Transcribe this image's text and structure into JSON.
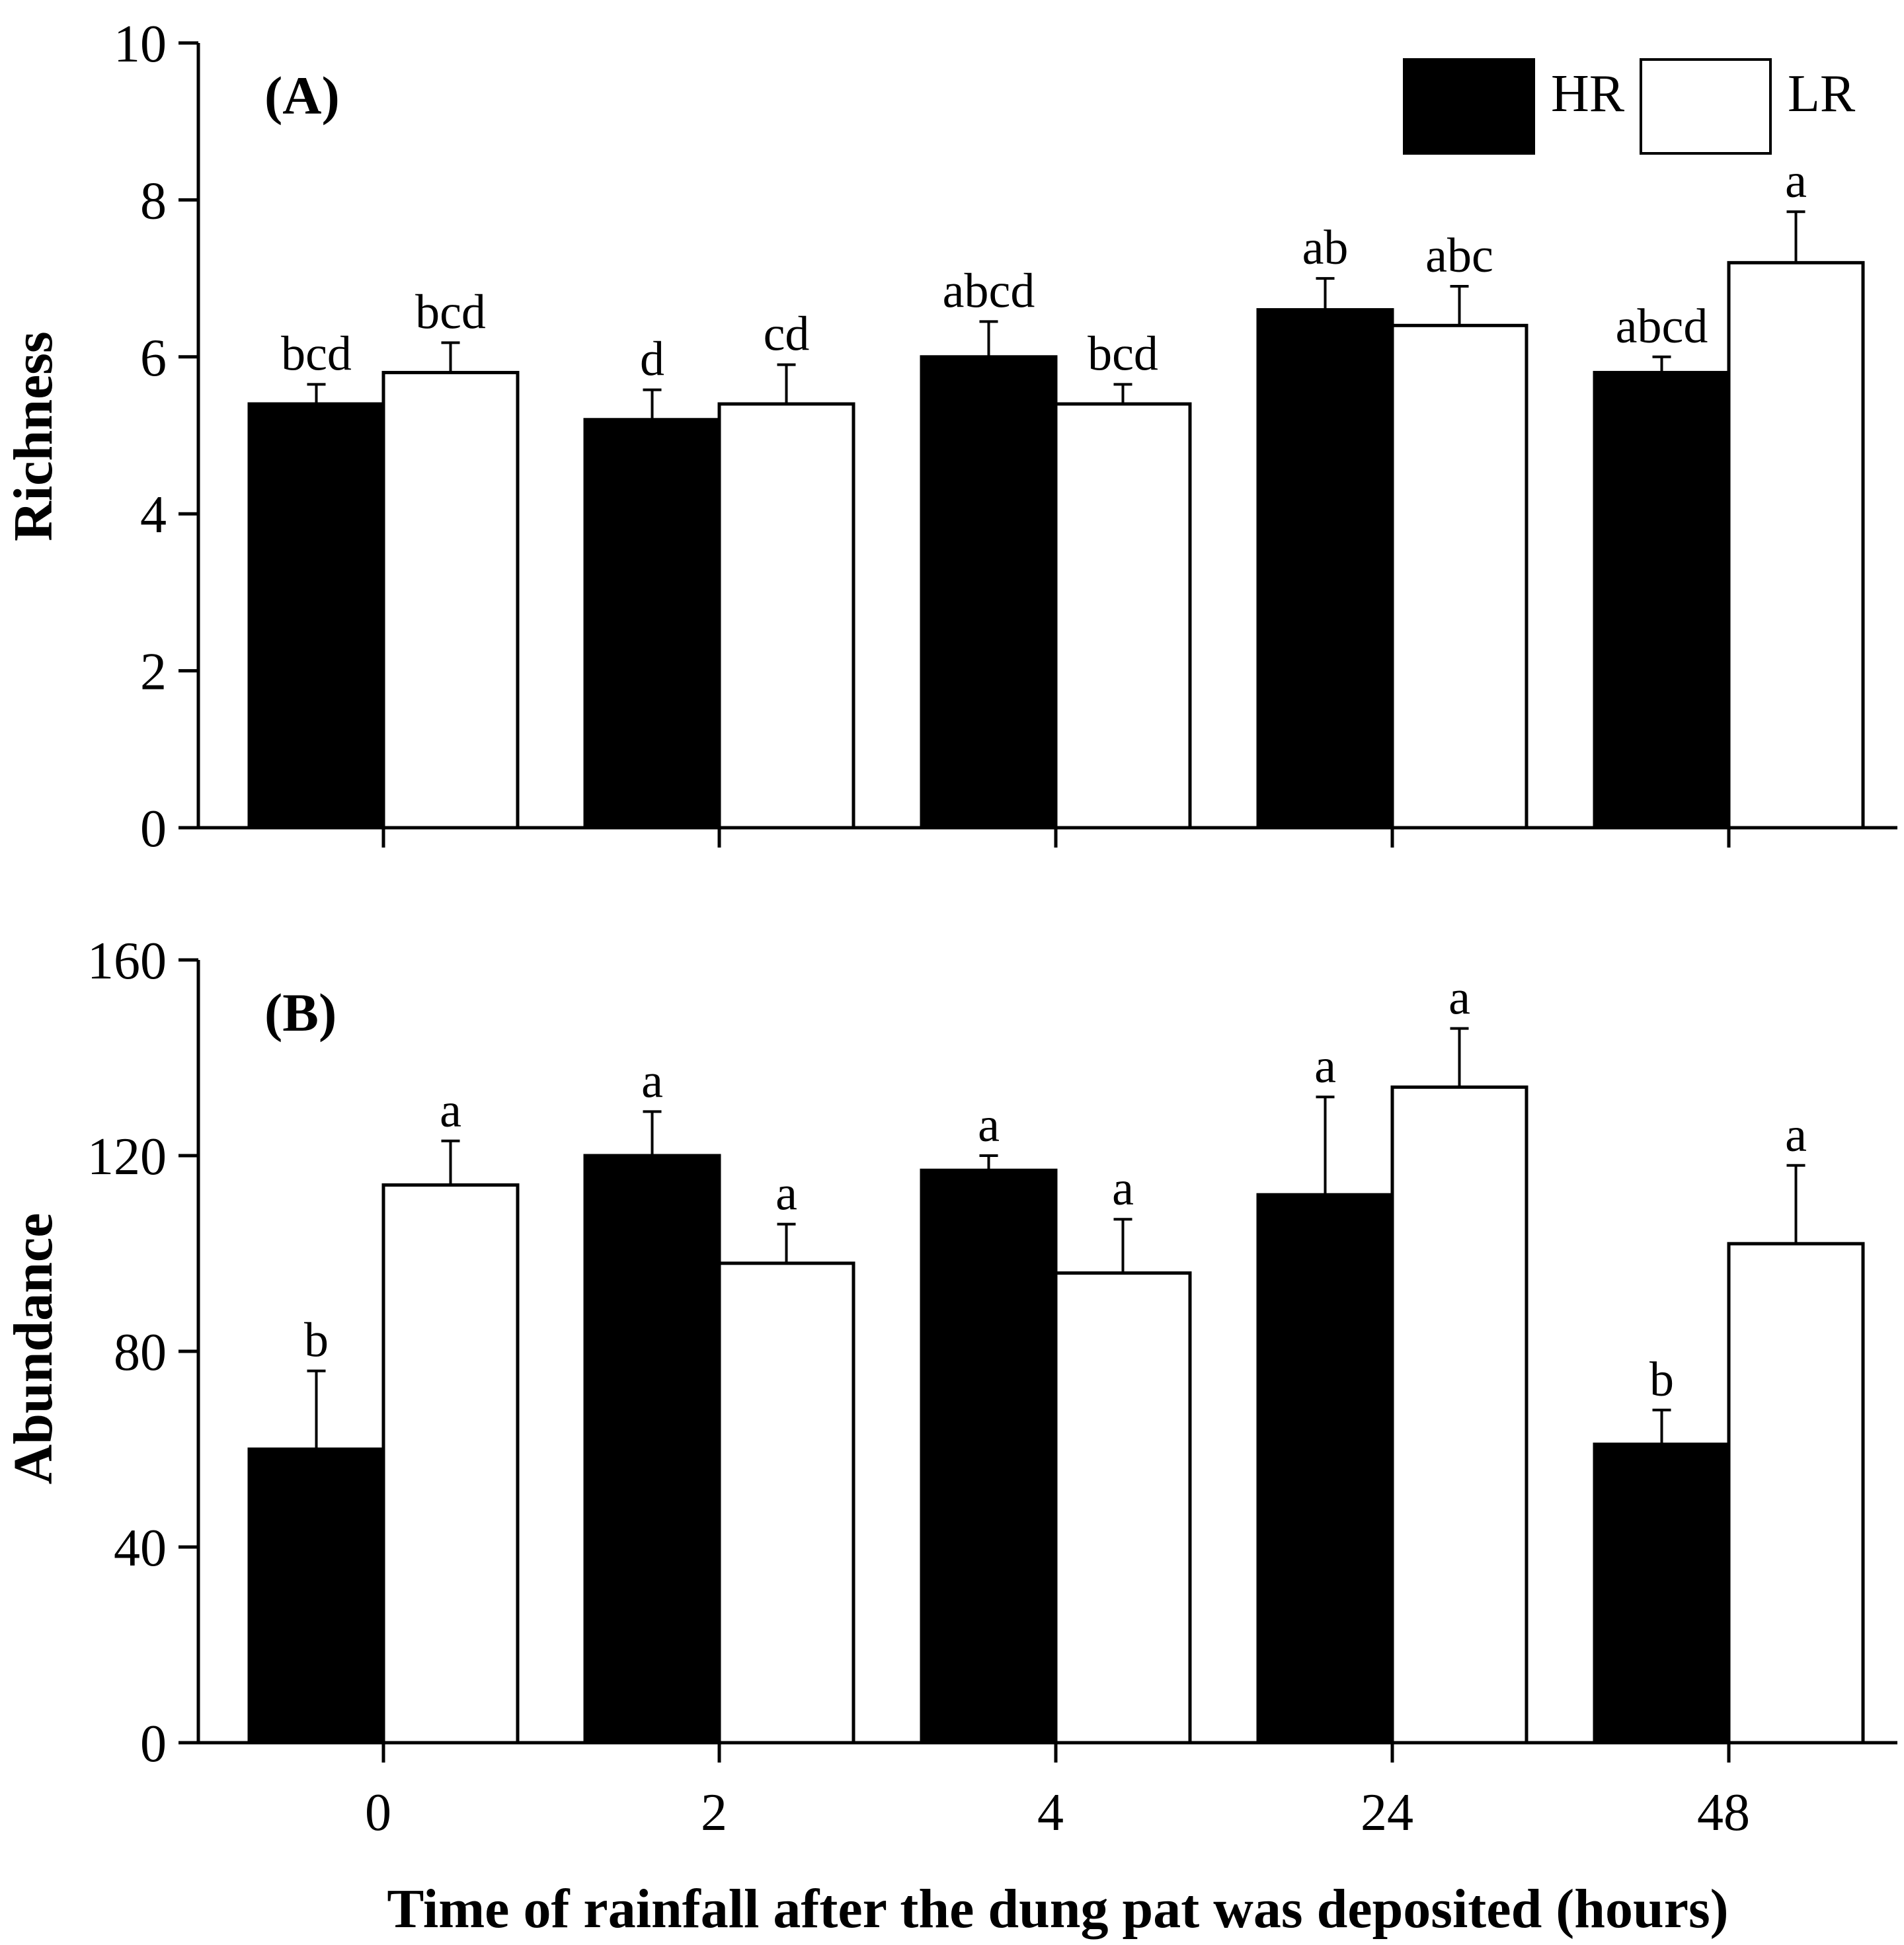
{
  "chart_data": [
    {
      "type": "bar",
      "panel_label": "(A)",
      "ylabel": "Richness",
      "xlabel": "",
      "ylim": [
        0,
        10
      ],
      "yticks": [
        "0",
        "2",
        "4",
        "6",
        "8",
        "10"
      ],
      "categories": [
        "0",
        "2",
        "4",
        "24",
        "48"
      ],
      "series": [
        {
          "name": "HR",
          "color": "#000000",
          "values": [
            5.4,
            5.2,
            6.0,
            6.6,
            5.8
          ],
          "errors": [
            0.25,
            0.38,
            0.45,
            0.4,
            0.2
          ],
          "letters": [
            "bcd",
            "d",
            "abcd",
            "ab",
            "abcd"
          ]
        },
        {
          "name": "LR",
          "color": "#ffffff",
          "values": [
            5.8,
            5.4,
            5.4,
            6.4,
            7.2
          ],
          "errors": [
            0.38,
            0.5,
            0.25,
            0.5,
            0.65
          ],
          "letters": [
            "bcd",
            "cd",
            "bcd",
            "abc",
            "a"
          ]
        }
      ],
      "legend": {
        "position": "top-right",
        "entries": [
          "HR",
          "LR"
        ]
      }
    },
    {
      "type": "bar",
      "panel_label": "(B)",
      "ylabel": "Abundance",
      "xlabel": "Time of rainfall after the dung pat was deposited (hours)",
      "ylim": [
        0,
        160
      ],
      "yticks": [
        "0",
        "40",
        "80",
        "120",
        "160"
      ],
      "categories": [
        "0",
        "2",
        "4",
        "24",
        "48"
      ],
      "series": [
        {
          "name": "HR",
          "color": "#000000",
          "values": [
            60,
            120,
            117,
            112,
            61
          ],
          "errors": [
            16,
            9,
            3,
            20,
            7
          ],
          "letters": [
            "b",
            "a",
            "a",
            "a",
            "b"
          ]
        },
        {
          "name": "LR",
          "color": "#ffffff",
          "values": [
            114,
            98,
            96,
            134,
            102
          ],
          "errors": [
            9,
            8,
            11,
            12,
            16
          ],
          "letters": [
            "a",
            "a",
            "a",
            "a",
            "a"
          ]
        }
      ]
    }
  ]
}
